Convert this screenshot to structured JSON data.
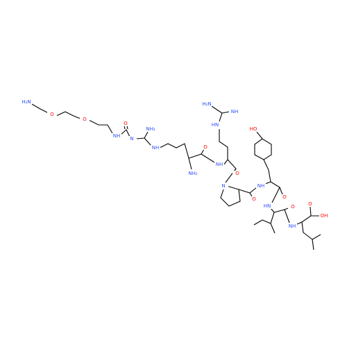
{
  "atoms": [
    "H₂N",
    "O",
    "O",
    "NH",
    "O",
    "N",
    "NH₂",
    "NH",
    "NH₂",
    "O",
    "NH",
    "H₂N",
    "NH",
    "HN",
    "O",
    "N",
    "O",
    "NH",
    "HO",
    "HN",
    "O",
    "O",
    "NH",
    "O",
    "OH"
  ]
}
